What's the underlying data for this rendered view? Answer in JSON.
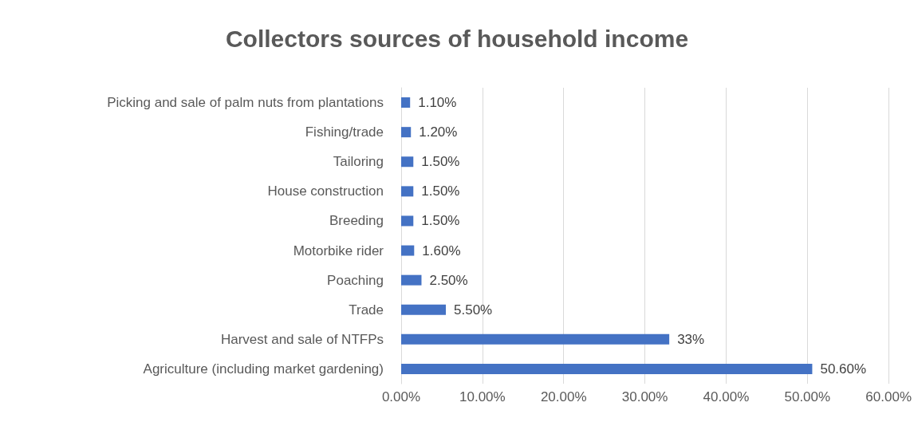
{
  "chart_data": {
    "type": "bar",
    "orientation": "horizontal",
    "title": "Collectors sources of household income",
    "categories": [
      "Picking and sale of palm nuts from plantations",
      "Fishing/trade",
      "Tailoring",
      "House construction",
      "Breeding",
      "Motorbike rider",
      "Poaching",
      "Trade",
      "Harvest and sale of NTFPs",
      "Agriculture (including market gardening)"
    ],
    "values": [
      1.1,
      1.2,
      1.5,
      1.5,
      1.5,
      1.6,
      2.5,
      5.5,
      33,
      50.6
    ],
    "value_labels": [
      "1.10%",
      "1.20%",
      "1.50%",
      "1.50%",
      "1.50%",
      "1.60%",
      "2.50%",
      "5.50%",
      "33%",
      "50.60%"
    ],
    "color": "#4472c4",
    "xlim": [
      0,
      60
    ],
    "xticks": [
      {
        "value": 0,
        "label": "0.00%"
      },
      {
        "value": 10,
        "label": "10.00%"
      },
      {
        "value": 20,
        "label": "20.00%"
      },
      {
        "value": 30,
        "label": "30.00%"
      },
      {
        "value": 40,
        "label": "40.00%"
      },
      {
        "value": 50,
        "label": "50.00%"
      },
      {
        "value": 60,
        "label": "60.00%"
      }
    ],
    "grid": "x"
  }
}
